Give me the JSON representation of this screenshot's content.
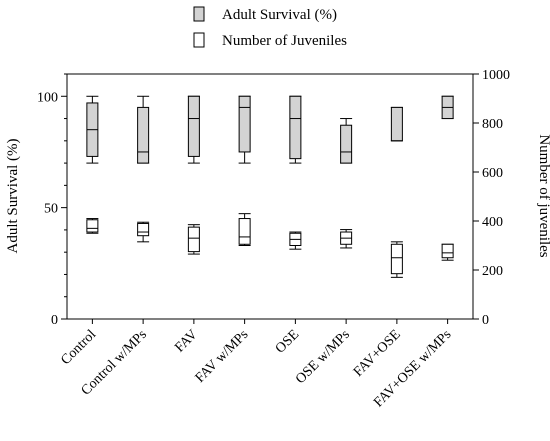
{
  "chart_data": {
    "type": "box",
    "categories": [
      "Control",
      "Control w/MPs",
      "FAV",
      "FAV w/MPs",
      "OSE",
      "OSE w/MPs",
      "FAV+OSE",
      "FAV+OSE w/MPs"
    ],
    "ylabel_left": "Adult Survival (%)",
    "ylabel_right": "Number of juveniles",
    "ylim_left": [
      0,
      110
    ],
    "ylim_right": [
      0,
      1000
    ],
    "yticks_left": [
      0,
      50,
      100
    ],
    "yticks_right": [
      0,
      200,
      400,
      600,
      800,
      1000
    ],
    "legend": {
      "position": "top-center"
    },
    "series": [
      {
        "name": "Adult Survival (%)",
        "axis": "left",
        "fill": "#d3d3d3",
        "boxes": [
          {
            "min": 70,
            "q1": 73,
            "median": 85,
            "q3": 97,
            "max": 100
          },
          {
            "min": 70,
            "q1": 70,
            "median": 75,
            "q3": 95,
            "max": 100
          },
          {
            "min": 70,
            "q1": 73,
            "median": 90,
            "q3": 100,
            "max": 100
          },
          {
            "min": 70,
            "q1": 75,
            "median": 95,
            "q3": 100,
            "max": 100
          },
          {
            "min": 70,
            "q1": 72,
            "median": 90,
            "q3": 100,
            "max": 100
          },
          {
            "min": 70,
            "q1": 70,
            "median": 75,
            "q3": 87,
            "max": 90
          },
          {
            "min": 80,
            "q1": 80,
            "median": 80,
            "q3": 95,
            "max": 95
          },
          {
            "min": 90,
            "q1": 90,
            "median": 95,
            "q3": 100,
            "max": 100
          }
        ]
      },
      {
        "name": "Number of Juveniles",
        "axis": "right",
        "fill": "#ffffff",
        "boxes": [
          {
            "min": 350,
            "q1": 355,
            "median": 370,
            "q3": 405,
            "max": 410
          },
          {
            "min": 315,
            "q1": 340,
            "median": 355,
            "q3": 390,
            "max": 395
          },
          {
            "min": 265,
            "q1": 275,
            "median": 330,
            "q3": 375,
            "max": 385
          },
          {
            "min": 300,
            "q1": 305,
            "median": 335,
            "q3": 410,
            "max": 430
          },
          {
            "min": 285,
            "q1": 300,
            "median": 325,
            "q3": 350,
            "max": 355
          },
          {
            "min": 290,
            "q1": 305,
            "median": 330,
            "q3": 355,
            "max": 365
          },
          {
            "min": 170,
            "q1": 185,
            "median": 250,
            "q3": 305,
            "max": 315
          },
          {
            "min": 240,
            "q1": 250,
            "median": 270,
            "q3": 305,
            "max": 305
          }
        ]
      }
    ]
  }
}
